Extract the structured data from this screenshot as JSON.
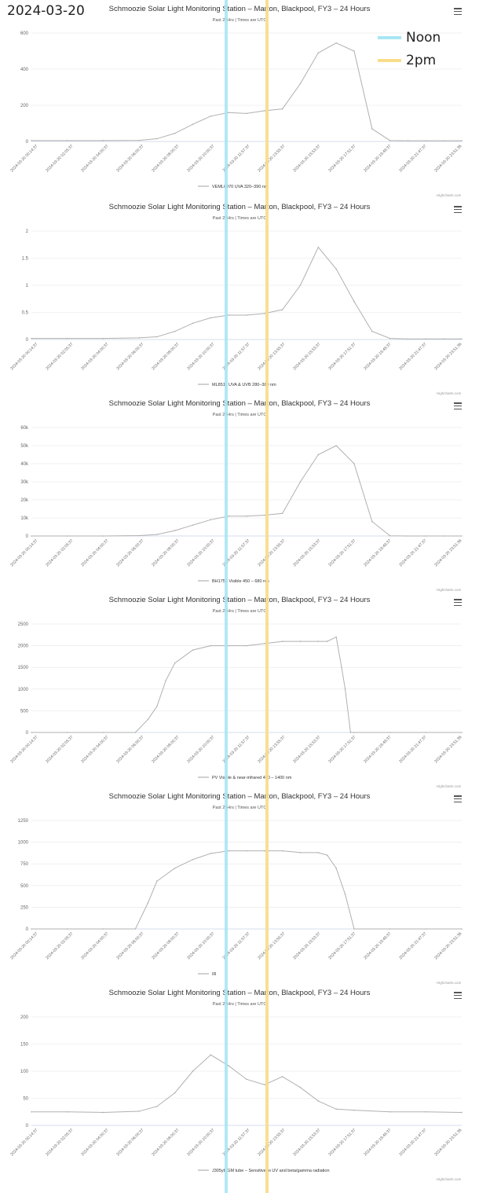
{
  "page": {
    "date": "2024-03-20",
    "legend": [
      {
        "label": "Noon",
        "color": "#a8e6f4"
      },
      {
        "label": "2pm",
        "color": "#f7dc8a"
      }
    ],
    "credit": "Highcharts.com"
  },
  "chart_data": [
    {
      "type": "line",
      "title": "Schmoozie Solar Light Monitoring Station – Marton, Blackpool, FY3 – 24 Hours",
      "subtitle": "Past 24Hrs | Times are UTC",
      "series_name": "VEML6070 UVA 320–390 nm",
      "y_ticks": [
        "0",
        "200",
        "400",
        "600"
      ],
      "ylim": [
        0,
        600
      ],
      "x_hours": [
        0,
        2,
        4,
        6,
        7,
        8,
        9,
        10,
        11,
        12,
        13,
        14,
        15,
        16,
        17,
        18,
        19,
        20,
        21,
        22,
        23,
        24
      ],
      "values": [
        5,
        5,
        5,
        6,
        15,
        45,
        95,
        140,
        160,
        155,
        170,
        180,
        320,
        490,
        545,
        500,
        70,
        5,
        4,
        4,
        4,
        4
      ],
      "x_tick_labels": [
        "2024-03-20 00:14:37",
        "2024-03-20 02:05:37",
        "2024-03-20 04:00:37",
        "2024-03-20 06:00:37",
        "2024-03-20 08:00:37",
        "2024-03-20 10:00:37",
        "2024-03-20 11:57:37",
        "2024-03-20 13:55:37",
        "2024-03-20 15:53:37",
        "2024-03-20 17:51:37",
        "2024-03-20 19:49:37",
        "2024-03-20 21:47:37",
        "2024-03-20 23:51:36"
      ]
    },
    {
      "type": "line",
      "title": "Schmoozie Solar Light Monitoring Station – Marton, Blackpool, FY3 – 24 Hours",
      "subtitle": "Past 24Hrs | Times are UTC",
      "series_name": "ML8511 UVA & UVB 280–380 nm",
      "y_ticks": [
        "0",
        "0.5",
        "1",
        "1.5",
        "2"
      ],
      "ylim": [
        0,
        2
      ],
      "x_hours": [
        0,
        2,
        4,
        6,
        7,
        8,
        9,
        10,
        11,
        12,
        13,
        14,
        15,
        16,
        17,
        18,
        19,
        20,
        21,
        22,
        23,
        24
      ],
      "values": [
        0.02,
        0.02,
        0.02,
        0.03,
        0.05,
        0.15,
        0.3,
        0.4,
        0.45,
        0.45,
        0.48,
        0.55,
        1.0,
        1.7,
        1.3,
        0.7,
        0.15,
        0.02,
        0.01,
        0.01,
        0.01,
        0.01
      ],
      "x_tick_labels": [
        "2024-03-20 00:14:37",
        "2024-03-20 02:05:37",
        "2024-03-20 04:00:37",
        "2024-03-20 06:00:37",
        "2024-03-20 08:00:37",
        "2024-03-20 10:00:37",
        "2024-03-20 11:57:37",
        "2024-03-20 13:55:37",
        "2024-03-20 15:53:37",
        "2024-03-20 17:51:37",
        "2024-03-20 19:49:37",
        "2024-03-20 21:47:37",
        "2024-03-20 23:51:36"
      ]
    },
    {
      "type": "line",
      "title": "Schmoozie Solar Light Monitoring Station – Marton, Blackpool, FY3 – 24 Hours",
      "subtitle": "Past 24Hrs | Times are UTC",
      "series_name": "BH1750 Visible 450 – 680 nm",
      "y_ticks": [
        "0",
        "10k",
        "20k",
        "30k",
        "40k",
        "50k",
        "60k"
      ],
      "ylim": [
        0,
        60000
      ],
      "x_hours": [
        0,
        2,
        4,
        6,
        7,
        8,
        9,
        10,
        11,
        12,
        13,
        14,
        15,
        16,
        17,
        18,
        19,
        20,
        21,
        22,
        23,
        24
      ],
      "values": [
        0,
        0,
        0,
        200,
        800,
        3000,
        6000,
        9000,
        11000,
        11000,
        11500,
        12500,
        30000,
        45000,
        50000,
        40000,
        8000,
        100,
        0,
        0,
        0,
        0
      ],
      "x_tick_labels": [
        "2024-03-20 00:14:37",
        "2024-03-20 02:05:37",
        "2024-03-20 04:00:37",
        "2024-03-20 06:00:37",
        "2024-03-20 08:00:37",
        "2024-03-20 10:00:37",
        "2024-03-20 11:57:37",
        "2024-03-20 13:55:37",
        "2024-03-20 15:53:37",
        "2024-03-20 17:51:37",
        "2024-03-20 19:49:37",
        "2024-03-20 21:47:37",
        "2024-03-20 23:51:36"
      ]
    },
    {
      "type": "line",
      "title": "Schmoozie Solar Light Monitoring Station – Marton, Blackpool, FY3 – 24 Hours",
      "subtitle": "Past 24Hrs | Times are UTC",
      "series_name": "PV Visible & near-infrared 400 – 1400 nm",
      "y_ticks": [
        "0",
        "500",
        "1000",
        "1500",
        "2000",
        "2500"
      ],
      "ylim": [
        0,
        2500
      ],
      "x_hours": [
        0,
        2,
        4,
        5.8,
        6.5,
        7,
        7.5,
        8,
        9,
        10,
        11,
        12,
        13,
        14,
        15,
        16,
        16.5,
        17,
        17.3,
        17.5,
        17.8,
        18,
        20,
        22,
        24
      ],
      "values": [
        0,
        0,
        0,
        0,
        300,
        600,
        1200,
        1600,
        1900,
        2000,
        2000,
        2000,
        2050,
        2100,
        2100,
        2100,
        2100,
        2200,
        1500,
        1000,
        0,
        0,
        0,
        0,
        0
      ],
      "x_tick_labels": [
        "2024-03-20 00:14:37",
        "2024-03-20 02:05:37",
        "2024-03-20 04:00:37",
        "2024-03-20 06:00:37",
        "2024-03-20 08:00:37",
        "2024-03-20 10:00:37",
        "2024-03-20 11:57:37",
        "2024-03-20 13:55:37",
        "2024-03-20 15:53:37",
        "2024-03-20 17:51:37",
        "2024-03-20 19:49:37",
        "2024-03-20 21:47:37",
        "2024-03-20 23:51:36"
      ]
    },
    {
      "type": "line",
      "title": "Schmoozie Solar Light Monitoring Station – Marton, Blackpool, FY3 – 24 Hours",
      "subtitle": "Past 24Hrs | Times are UTC",
      "series_name": "IR",
      "y_ticks": [
        "0",
        "250",
        "500",
        "750",
        "1000",
        "1250"
      ],
      "ylim": [
        0,
        1250
      ],
      "x_hours": [
        0,
        2,
        4,
        5.8,
        6.5,
        7,
        8,
        9,
        10,
        11,
        12,
        13,
        14,
        15,
        16,
        16.5,
        17,
        17.5,
        18,
        20,
        22,
        24
      ],
      "values": [
        0,
        0,
        0,
        0,
        300,
        550,
        700,
        800,
        870,
        900,
        900,
        900,
        900,
        880,
        880,
        850,
        700,
        400,
        0,
        0,
        0,
        0
      ],
      "x_tick_labels": [
        "2024-03-20 00:14:37",
        "2024-03-20 02:05:37",
        "2024-03-20 04:00:37",
        "2024-03-20 06:00:37",
        "2024-03-20 08:00:37",
        "2024-03-20 10:00:37",
        "2024-03-20 11:57:37",
        "2024-03-20 13:55:37",
        "2024-03-20 15:53:37",
        "2024-03-20 17:51:37",
        "2024-03-20 19:49:37",
        "2024-03-20 21:47:37",
        "2024-03-20 23:51:36"
      ]
    },
    {
      "type": "line",
      "title": "Schmoozie Solar Light Monitoring Station – Marton, Blackpool, FY3 – 24 Hours",
      "subtitle": "Past 24Hrs | Times are UTC",
      "series_name": "J305yb GM tube – Sensitive to UV and beta/gamma radiation",
      "y_ticks": [
        "0",
        "50",
        "100",
        "150",
        "200"
      ],
      "ylim": [
        0,
        200
      ],
      "x_hours": [
        0,
        2,
        4,
        6,
        7,
        8,
        9,
        10,
        11,
        12,
        13,
        14,
        15,
        16,
        17,
        18,
        20,
        22,
        24
      ],
      "values": [
        25,
        25,
        24,
        26,
        35,
        60,
        100,
        130,
        110,
        85,
        75,
        90,
        70,
        45,
        30,
        28,
        25,
        25,
        24
      ],
      "x_tick_labels": [
        "2024-03-20 00:14:37",
        "2024-03-20 02:05:37",
        "2024-03-20 04:00:37",
        "2024-03-20 06:00:37",
        "2024-03-20 08:00:37",
        "2024-03-20 10:00:37",
        "2024-03-20 11:57:37",
        "2024-03-20 13:55:37",
        "2024-03-20 15:53:37",
        "2024-03-20 17:51:37",
        "2024-03-20 19:49:37",
        "2024-03-20 21:47:37",
        "2024-03-20 23:51:36"
      ]
    }
  ]
}
